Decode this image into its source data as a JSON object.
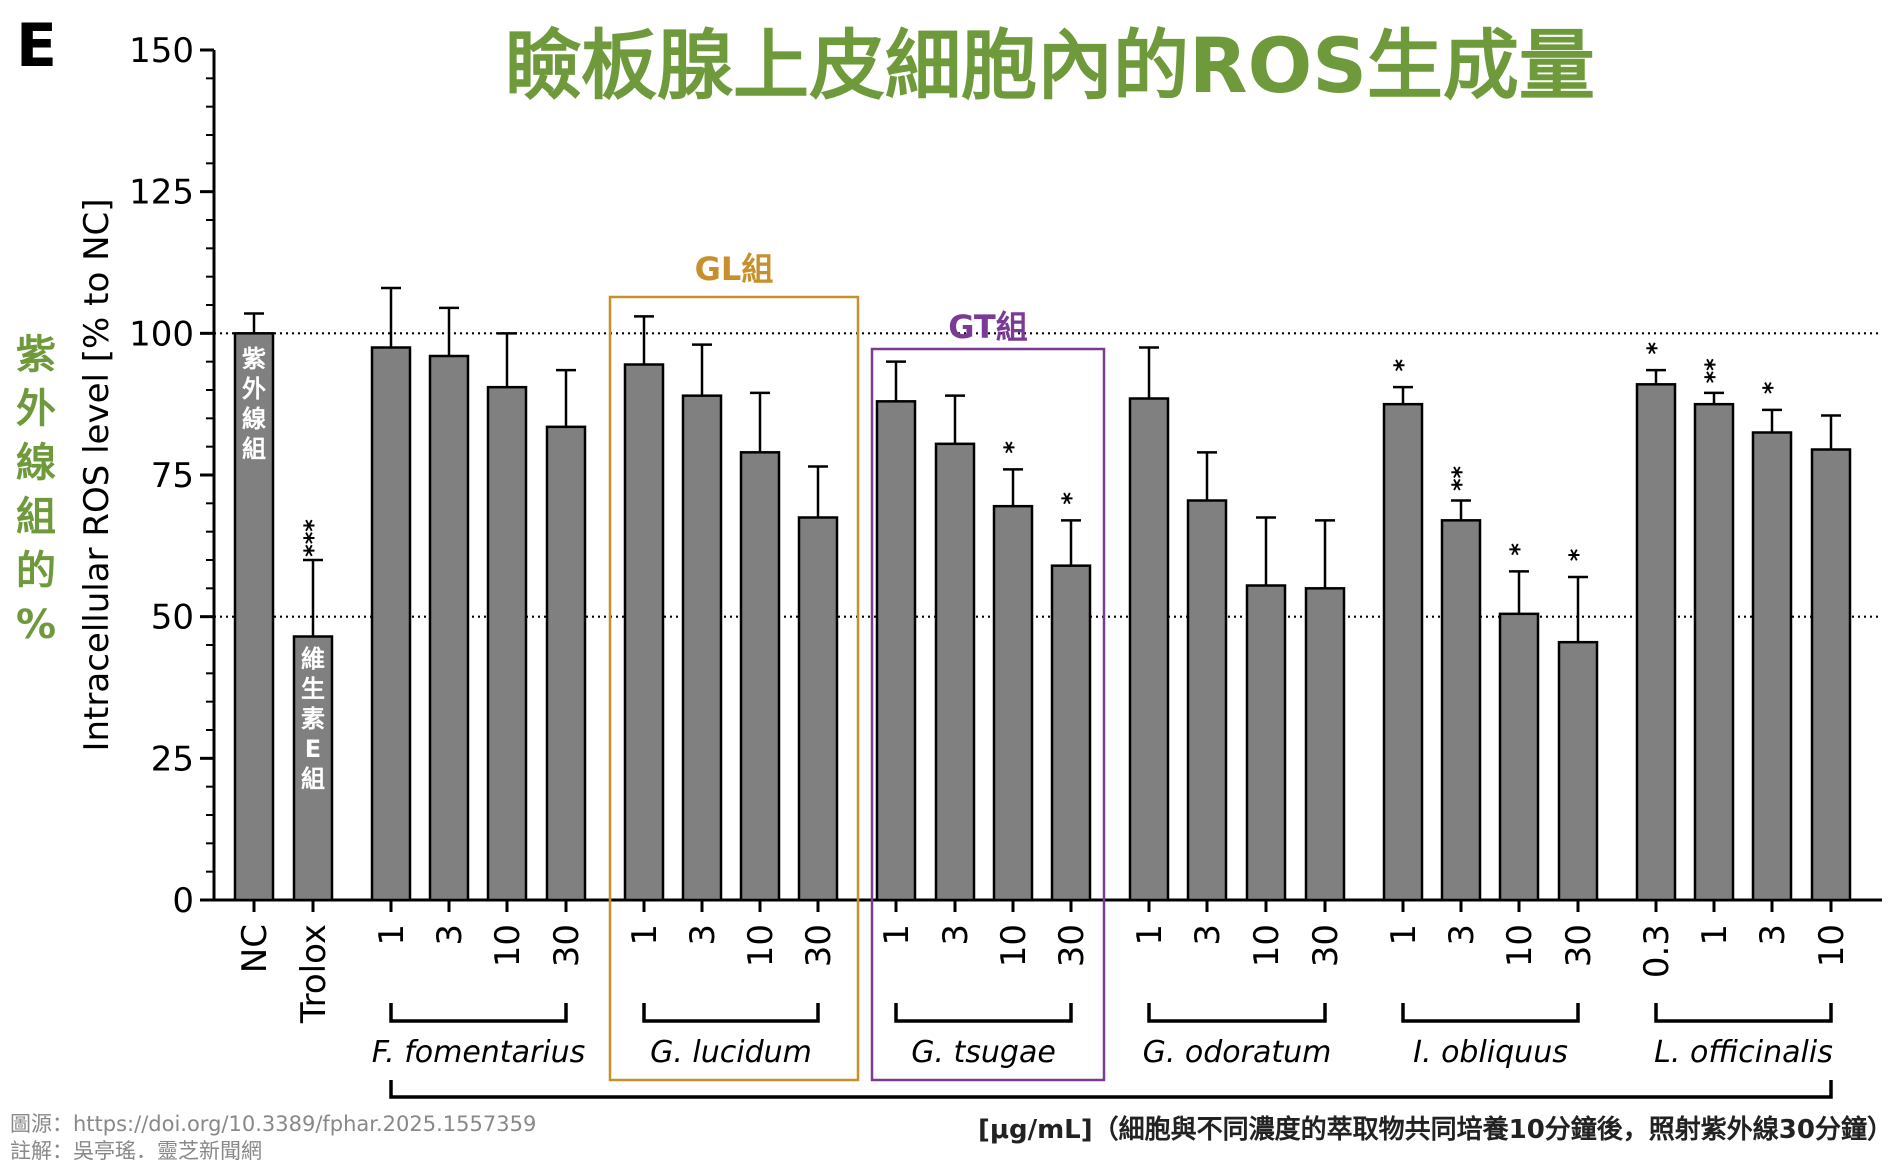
{
  "panel_label": "E",
  "title": "瞼板腺上皮細胞內的ROS生成量",
  "side_label": [
    "紫",
    "外",
    "線",
    "組",
    "的",
    "%"
  ],
  "box_labels": [
    {
      "id": "GL",
      "text": "GL組",
      "color": "#c8902a"
    },
    {
      "id": "GT",
      "text": "GT組",
      "color": "#7b3a96"
    }
  ],
  "nc_label": [
    "紫",
    "外",
    "線",
    "組"
  ],
  "trolox_label": [
    "維",
    "生",
    "素",
    "E",
    "組"
  ],
  "unit_label": "[μg/mL]",
  "note": "（細胞與不同濃度的萃取物共同培養10分鐘後，照射紫外線30分鐘）",
  "credit_source": "圖源：https://doi.org/10.3389/fphar.2025.1557359",
  "credit_note": "註解：吳亭瑤．靈芝新聞網",
  "colors": {
    "bar": "#808080",
    "title": "#6e9a3c",
    "gl_box": "#c8902a",
    "gt_box": "#7b3a96"
  },
  "chart_data": {
    "type": "bar",
    "ylabel": "Intracellular ROS level [% to NC]",
    "ylim": [
      0,
      150
    ],
    "yticks": [
      0,
      25,
      50,
      75,
      100,
      125,
      150
    ],
    "reference_lines": [
      50,
      100
    ],
    "bars": [
      {
        "label": "NC",
        "group": "",
        "value": 100,
        "error": 3.5,
        "sig": ""
      },
      {
        "label": "Trolox",
        "group": "",
        "value": 46.5,
        "error": 13.5,
        "sig": "***"
      },
      {
        "label": "1",
        "group": "F. fomentarius",
        "value": 97.5,
        "error": 10.5,
        "sig": ""
      },
      {
        "label": "3",
        "group": "F. fomentarius",
        "value": 96,
        "error": 8.5,
        "sig": ""
      },
      {
        "label": "10",
        "group": "F. fomentarius",
        "value": 90.5,
        "error": 9.5,
        "sig": ""
      },
      {
        "label": "30",
        "group": "F. fomentarius",
        "value": 83.5,
        "error": 10,
        "sig": ""
      },
      {
        "label": "1",
        "group": "G. lucidum",
        "value": 94.5,
        "error": 8.5,
        "sig": ""
      },
      {
        "label": "3",
        "group": "G. lucidum",
        "value": 89,
        "error": 9,
        "sig": ""
      },
      {
        "label": "10",
        "group": "G. lucidum",
        "value": 79,
        "error": 10.5,
        "sig": ""
      },
      {
        "label": "30",
        "group": "G. lucidum",
        "value": 67.5,
        "error": 9,
        "sig": ""
      },
      {
        "label": "1",
        "group": "G. tsugae",
        "value": 88,
        "error": 7,
        "sig": ""
      },
      {
        "label": "3",
        "group": "G. tsugae",
        "value": 80.5,
        "error": 8.5,
        "sig": ""
      },
      {
        "label": "10",
        "group": "G. tsugae",
        "value": 69.5,
        "error": 6.5,
        "sig": "*"
      },
      {
        "label": "30",
        "group": "G. tsugae",
        "value": 59,
        "error": 8,
        "sig": "*"
      },
      {
        "label": "1",
        "group": "G. odoratum",
        "value": 88.5,
        "error": 9,
        "sig": ""
      },
      {
        "label": "3",
        "group": "G. odoratum",
        "value": 70.5,
        "error": 8.5,
        "sig": ""
      },
      {
        "label": "10",
        "group": "G. odoratum",
        "value": 55.5,
        "error": 12,
        "sig": ""
      },
      {
        "label": "30",
        "group": "G. odoratum",
        "value": 55,
        "error": 12,
        "sig": ""
      },
      {
        "label": "1",
        "group": "I. obliquus",
        "value": 87.5,
        "error": 3,
        "sig": "*"
      },
      {
        "label": "3",
        "group": "I. obliquus",
        "value": 67,
        "error": 3.5,
        "sig": "**"
      },
      {
        "label": "10",
        "group": "I. obliquus",
        "value": 50.5,
        "error": 7.5,
        "sig": "*"
      },
      {
        "label": "30",
        "group": "I. obliquus",
        "value": 45.5,
        "error": 11.5,
        "sig": "*"
      },
      {
        "label": "0.3",
        "group": "L. officinalis",
        "value": 91,
        "error": 2.5,
        "sig": "*"
      },
      {
        "label": "1",
        "group": "L. officinalis",
        "value": 87.5,
        "error": 2,
        "sig": "**"
      },
      {
        "label": "3",
        "group": "L. officinalis",
        "value": 82.5,
        "error": 4,
        "sig": "*"
      },
      {
        "label": "10",
        "group": "L. officinalis",
        "value": 79.5,
        "error": 6,
        "sig": ""
      }
    ],
    "groups": [
      "F. fomentarius",
      "G. lucidum",
      "G. tsugae",
      "G. odoratum",
      "I. obliquus",
      "L. officinalis"
    ]
  }
}
